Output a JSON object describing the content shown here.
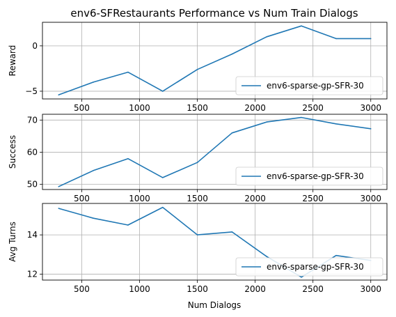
{
  "chart_data": {
    "title": "env6-SFRestaurants Performance vs Num Train Dialogs",
    "xlabel": "Num Dialogs",
    "panels": [
      {
        "type": "line",
        "ylabel": "Reward",
        "xlim": [
          160,
          3140
        ],
        "ylim": [
          -5.85,
          2.6
        ],
        "x_ticks": [
          500,
          1000,
          1500,
          2000,
          2500,
          3000
        ],
        "y_ticks": [
          -5,
          0
        ],
        "grid": true,
        "legend": "lower-right",
        "series": [
          {
            "name": "env6-sparse-gp-SFR-30",
            "color": "#1f77b4",
            "x": [
              300,
              600,
              900,
              1200,
              1500,
              1800,
              2100,
              2400,
              2700,
              3000
            ],
            "y": [
              -5.4,
              -4.0,
              -2.9,
              -5.0,
              -2.6,
              -0.9,
              1.0,
              2.2,
              0.8,
              0.8
            ]
          }
        ]
      },
      {
        "type": "line",
        "ylabel": "Success",
        "xlim": [
          160,
          3140
        ],
        "ylim": [
          48.4,
          71.8
        ],
        "x_ticks": [
          500,
          1000,
          1500,
          2000,
          2500,
          3000
        ],
        "y_ticks": [
          50,
          60,
          70
        ],
        "grid": true,
        "legend": "lower-right",
        "series": [
          {
            "name": "env6-sparse-gp-SFR-30",
            "color": "#1f77b4",
            "x": [
              300,
              600,
              900,
              1200,
              1500,
              1800,
              2100,
              2400,
              2700,
              3000
            ],
            "y": [
              49.3,
              54.3,
              58.0,
              52.1,
              56.8,
              66.0,
              69.4,
              70.8,
              68.8,
              67.3
            ]
          }
        ]
      },
      {
        "type": "line",
        "ylabel": "Avg Turns",
        "xlim": [
          160,
          3140
        ],
        "ylim": [
          11.7,
          15.6
        ],
        "x_ticks": [
          500,
          1000,
          1500,
          2000,
          2500,
          3000
        ],
        "y_ticks": [
          12,
          14
        ],
        "grid": true,
        "legend": "lower-right",
        "series": [
          {
            "name": "env6-sparse-gp-SFR-30",
            "color": "#1f77b4",
            "x": [
              300,
              600,
              900,
              1200,
              1500,
              1800,
              2100,
              2400,
              2700,
              3000
            ],
            "y": [
              15.35,
              14.85,
              14.5,
              15.4,
              14.0,
              14.15,
              12.9,
              11.85,
              12.95,
              12.7
            ]
          }
        ]
      }
    ]
  }
}
